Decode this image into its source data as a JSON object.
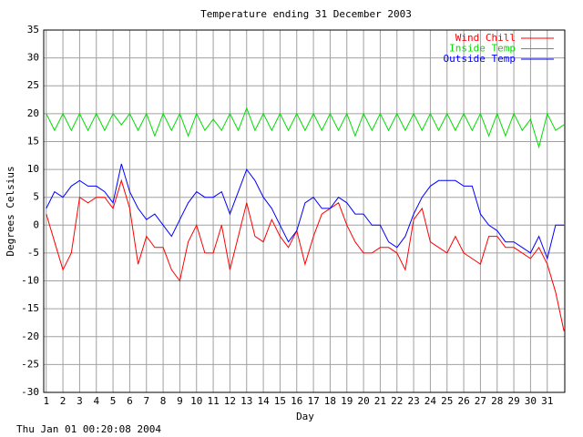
{
  "chart_data": {
    "type": "line",
    "title": "Temperature ending 31 December 2003",
    "x_label": "Day",
    "y_label": "Degrees Celsius",
    "footer": "Thu Jan 01 00:20:08 2004",
    "x": [
      1,
      1.5,
      2,
      2.5,
      3,
      3.5,
      4,
      4.5,
      5,
      5.5,
      6,
      6.5,
      7,
      7.5,
      8,
      8.5,
      9,
      9.5,
      10,
      10.5,
      11,
      11.5,
      12,
      12.5,
      13,
      13.5,
      14,
      14.5,
      15,
      15.5,
      16,
      16.5,
      17,
      17.5,
      18,
      18.5,
      19,
      19.5,
      20,
      20.5,
      21,
      21.5,
      22,
      22.5,
      23,
      23.5,
      24,
      24.5,
      25,
      25.5,
      26,
      26.5,
      27,
      27.5,
      28,
      28.5,
      29,
      29.5,
      30,
      30.5,
      31,
      31.5,
      32
    ],
    "series": [
      {
        "name": "Wind Chill",
        "color": "#ff0000",
        "values": [
          2,
          -3,
          -8,
          -5,
          5,
          4,
          5,
          5,
          3,
          8,
          3,
          -7,
          -2,
          -4,
          -4,
          -8,
          -10,
          -3,
          0,
          -5,
          -5,
          0,
          -8,
          -2,
          4,
          -2,
          -3,
          1,
          -2,
          -4,
          -1,
          -7,
          -2,
          2,
          3,
          4,
          0,
          -3,
          -5,
          -5,
          -4,
          -4,
          -5,
          -8,
          1,
          3,
          -3,
          -4,
          -5,
          -2,
          -5,
          -6,
          -7,
          -2,
          -2,
          -4,
          -4,
          -5,
          -6,
          -4,
          -7,
          -12,
          -19
        ]
      },
      {
        "name": "Inside Temp",
        "color": "#00dd00",
        "values": [
          20,
          17,
          20,
          17,
          20,
          17,
          20,
          17,
          20,
          18,
          20,
          17,
          20,
          16,
          20,
          17,
          20,
          16,
          20,
          17,
          19,
          17,
          20,
          17,
          21,
          17,
          20,
          17,
          20,
          17,
          20,
          17,
          20,
          17,
          20,
          17,
          20,
          16,
          20,
          17,
          20,
          17,
          20,
          17,
          20,
          17,
          20,
          17,
          20,
          17,
          20,
          17,
          20,
          16,
          20,
          16,
          20,
          17,
          19,
          14,
          20,
          17,
          18
        ]
      },
      {
        "name": "Outside Temp",
        "color": "#0000ff",
        "values": [
          3,
          6,
          5,
          7,
          8,
          7,
          7,
          6,
          4,
          11,
          6,
          3,
          1,
          2,
          0,
          -2,
          1,
          4,
          6,
          5,
          5,
          6,
          2,
          6,
          10,
          8,
          5,
          3,
          0,
          -3,
          -1,
          4,
          5,
          3,
          3,
          5,
          4,
          2,
          2,
          0,
          0,
          -3,
          -4,
          -2,
          2,
          5,
          7,
          8,
          8,
          8,
          7,
          7,
          2,
          0,
          -1,
          -3,
          -3,
          -4,
          -5,
          -2,
          -6,
          0,
          0
        ]
      }
    ],
    "xlim": [
      0.85,
      32.05
    ],
    "xticks": [
      1,
      2,
      3,
      4,
      5,
      6,
      7,
      8,
      9,
      10,
      11,
      12,
      13,
      14,
      15,
      16,
      17,
      18,
      19,
      20,
      21,
      22,
      23,
      24,
      25,
      26,
      27,
      28,
      29,
      30,
      31
    ],
    "ylim": [
      -30,
      35
    ],
    "yticks": [
      -30,
      -25,
      -20,
      -15,
      -10,
      -5,
      0,
      5,
      10,
      15,
      20,
      25,
      30,
      35
    ],
    "grid": true,
    "legend": "top-right"
  }
}
